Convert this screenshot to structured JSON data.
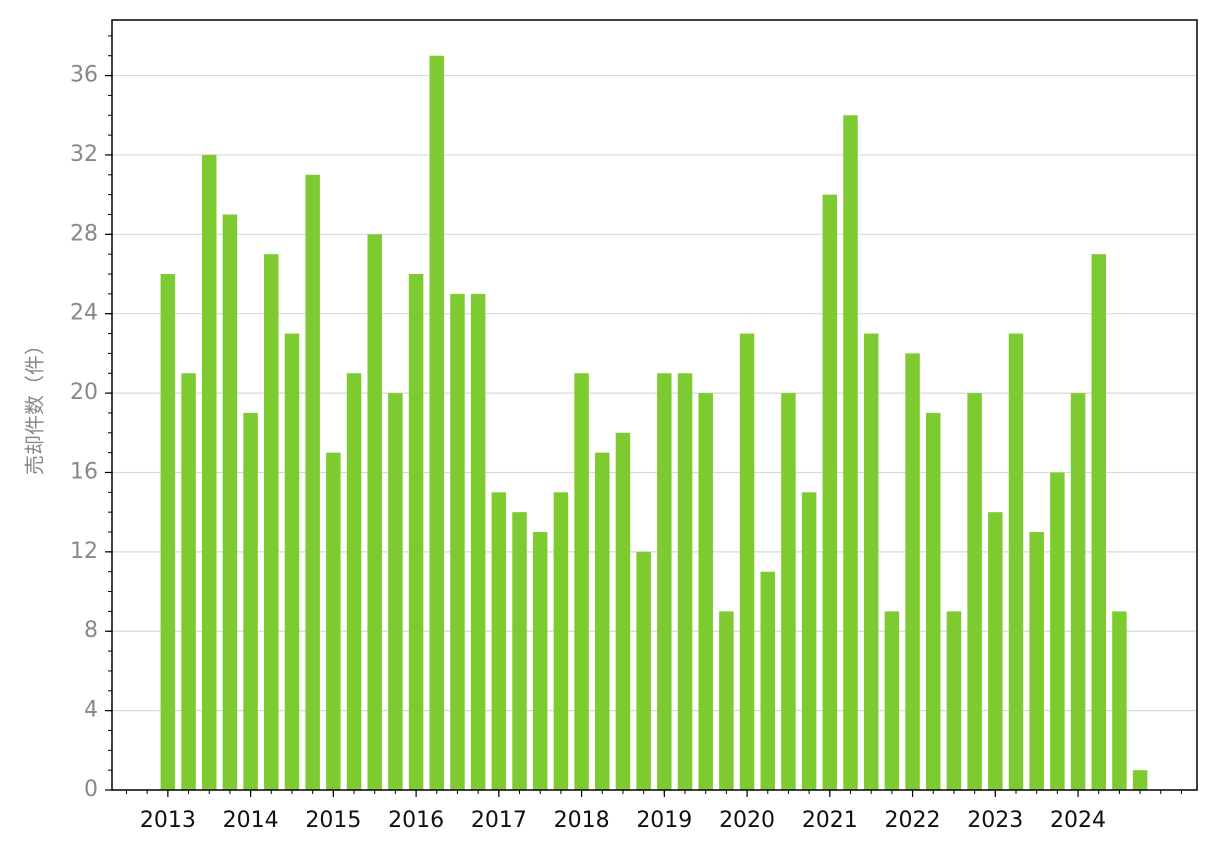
{
  "chart_data": {
    "type": "bar",
    "y_label": "売却件数（件）",
    "categories": [
      "2013",
      null,
      null,
      null,
      "2014",
      null,
      null,
      null,
      "2015",
      null,
      null,
      null,
      "2016",
      null,
      null,
      null,
      "2017",
      null,
      null,
      null,
      "2018",
      null,
      null,
      null,
      "2019",
      null,
      null,
      null,
      "2020",
      null,
      null,
      null,
      "2021",
      null,
      null,
      null,
      "2022",
      null,
      null,
      null,
      "2023",
      null,
      null,
      null,
      "2024",
      null,
      null,
      null
    ],
    "values": [
      26,
      21,
      32,
      29,
      19,
      27,
      23,
      31,
      17,
      21,
      28,
      20,
      26,
      37,
      25,
      25,
      15,
      14,
      13,
      15,
      21,
      17,
      18,
      12,
      21,
      21,
      20,
      9,
      23,
      11,
      20,
      15,
      30,
      34,
      23,
      9,
      22,
      19,
      9,
      20,
      14,
      23,
      13,
      16,
      20,
      27,
      9,
      1
    ],
    "color": "#7ecb31",
    "ylim": [
      0,
      38.8
    ],
    "yticks": [
      0,
      4,
      8,
      12,
      16,
      20,
      24,
      28,
      32,
      36
    ],
    "grid": true
  }
}
